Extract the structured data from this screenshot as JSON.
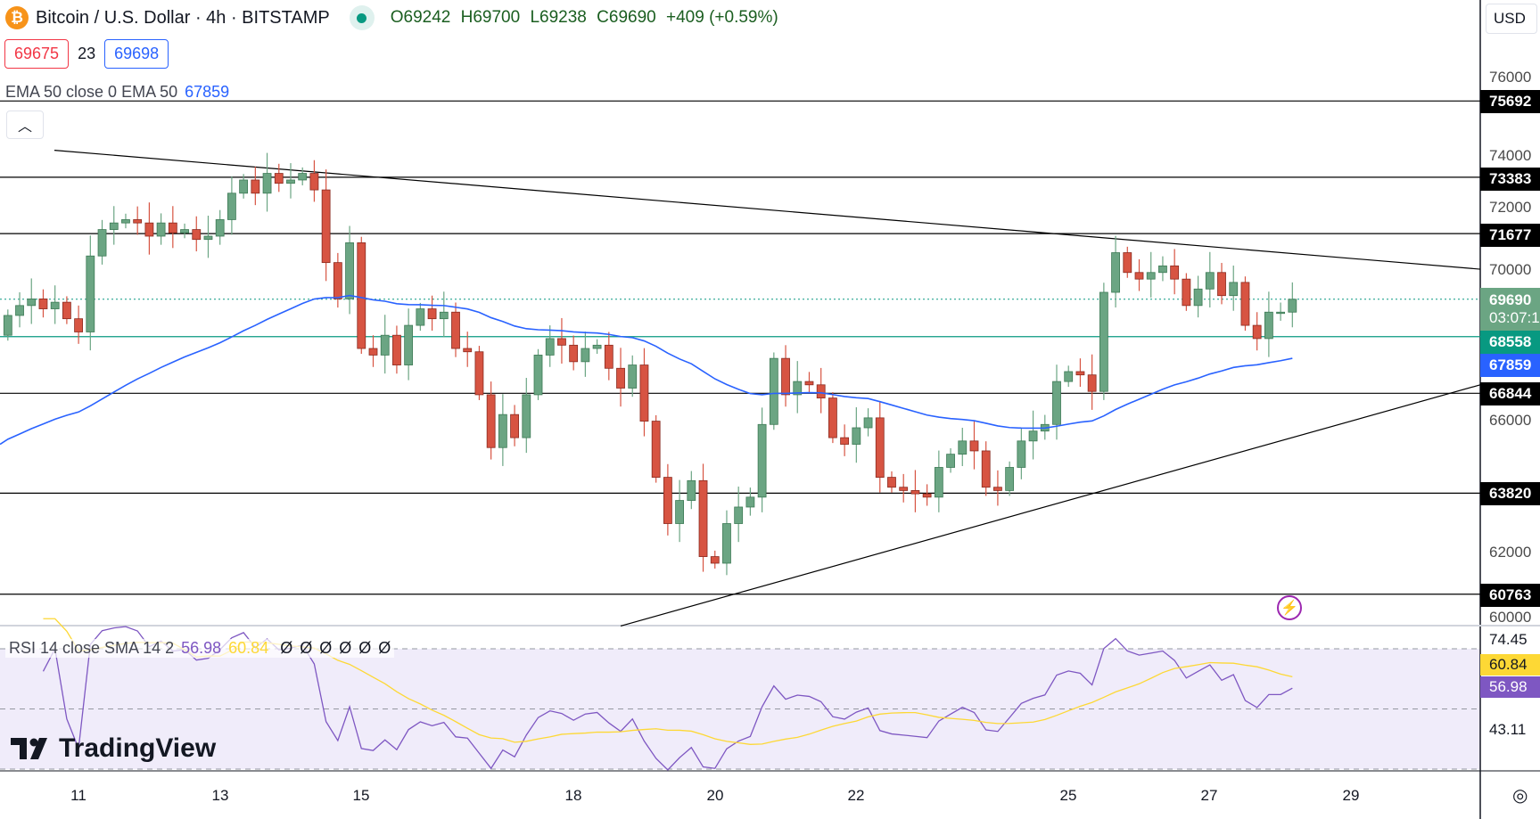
{
  "header": {
    "symbol_icon": "bitcoin-icon",
    "title": "Bitcoin / U.S. Dollar · 4h · BITSTAMP",
    "open": "O69242",
    "high": "H69700",
    "low": "L69238",
    "close": "C69690",
    "change": "+409 (+0.59%)"
  },
  "quote": {
    "sell": "69675",
    "spread": "23",
    "buy": "69698"
  },
  "ema_legend": {
    "label": "EMA 50 close 0 EMA 50",
    "value": "67859"
  },
  "rsi_legend": {
    "label": "RSI 14 close SMA 14 2",
    "rsi": "56.98",
    "sma": "60.84",
    "nulls": [
      "Ø",
      "Ø",
      "Ø",
      "Ø",
      "Ø",
      "Ø"
    ]
  },
  "logo": "TradingView",
  "currency": "USD",
  "price_axis": {
    "ticks": [
      "76000",
      "74000",
      "72000",
      "70000",
      "66000",
      "62000",
      "60000"
    ],
    "levels": [
      "75692",
      "73383",
      "71677",
      "66844",
      "63820",
      "60763"
    ],
    "current_price": "69690",
    "countdown": "03:07:1",
    "teal_level": "68558",
    "ema_value": "67859"
  },
  "rsi_axis": {
    "high": "74.45",
    "sma": "60.84",
    "rsi": "56.98",
    "low": "43.11"
  },
  "time_axis": [
    "11",
    "13",
    "15",
    "18",
    "20",
    "22",
    "25",
    "27",
    "29"
  ],
  "colors": {
    "up": "#6ba583",
    "down": "#d75442",
    "ema": "#2962ff",
    "rsi": "#7e57c2",
    "rsi_sma": "#fdd835",
    "teal": "#089981"
  },
  "chart_data": {
    "type": "candlestick",
    "first_open": 68600,
    "closes": [
      69200,
      69500,
      69700,
      69400,
      69600,
      69100,
      68700,
      71000,
      71800,
      72000,
      72100,
      72000,
      71600,
      72000,
      71700,
      71800,
      71500,
      71600,
      72100,
      72900,
      73300,
      72900,
      73500,
      73200,
      73300,
      73500,
      73000,
      70800,
      69700,
      71400,
      68200,
      68000,
      68600,
      67700,
      68900,
      69400,
      69100,
      69300,
      68200,
      68100,
      66800,
      65200,
      66200,
      65500,
      66800,
      68000,
      68500,
      68300,
      67800,
      68200,
      68300,
      67600,
      67000,
      67700,
      66000,
      64300,
      62900,
      63600,
      64200,
      61900,
      61700,
      62900,
      63400,
      63700,
      65900,
      67900,
      66800,
      67200,
      67100,
      66700,
      65500,
      65300,
      65800,
      66100,
      64300,
      64000,
      63900,
      63800,
      63700,
      64600,
      65000,
      65400,
      65100,
      64000,
      63900,
      64600,
      65400,
      65700,
      65900,
      67200,
      67500,
      67400,
      66900,
      69900,
      71100,
      70500,
      70300,
      70500,
      70700,
      70300,
      69500,
      70000,
      70500,
      69800,
      70200,
      68900,
      68500,
      69300,
      69300,
      69690
    ],
    "horizontal_levels": [
      75692,
      73383,
      71677,
      68558,
      66844,
      63820,
      60763
    ],
    "trendlines": [
      {
        "from": [
          0,
          74200
        ],
        "to": [
          1,
          70600
        ]
      },
      {
        "from": [
          0,
          59800
        ],
        "to": [
          1,
          67100
        ]
      }
    ],
    "ema_period": 50,
    "ema_seed": 65300,
    "rsi_period": 14,
    "rsi_sma_period": 14,
    "ylim": [
      60000,
      76500
    ],
    "rsi_bands": [
      70,
      50,
      30
    ]
  }
}
